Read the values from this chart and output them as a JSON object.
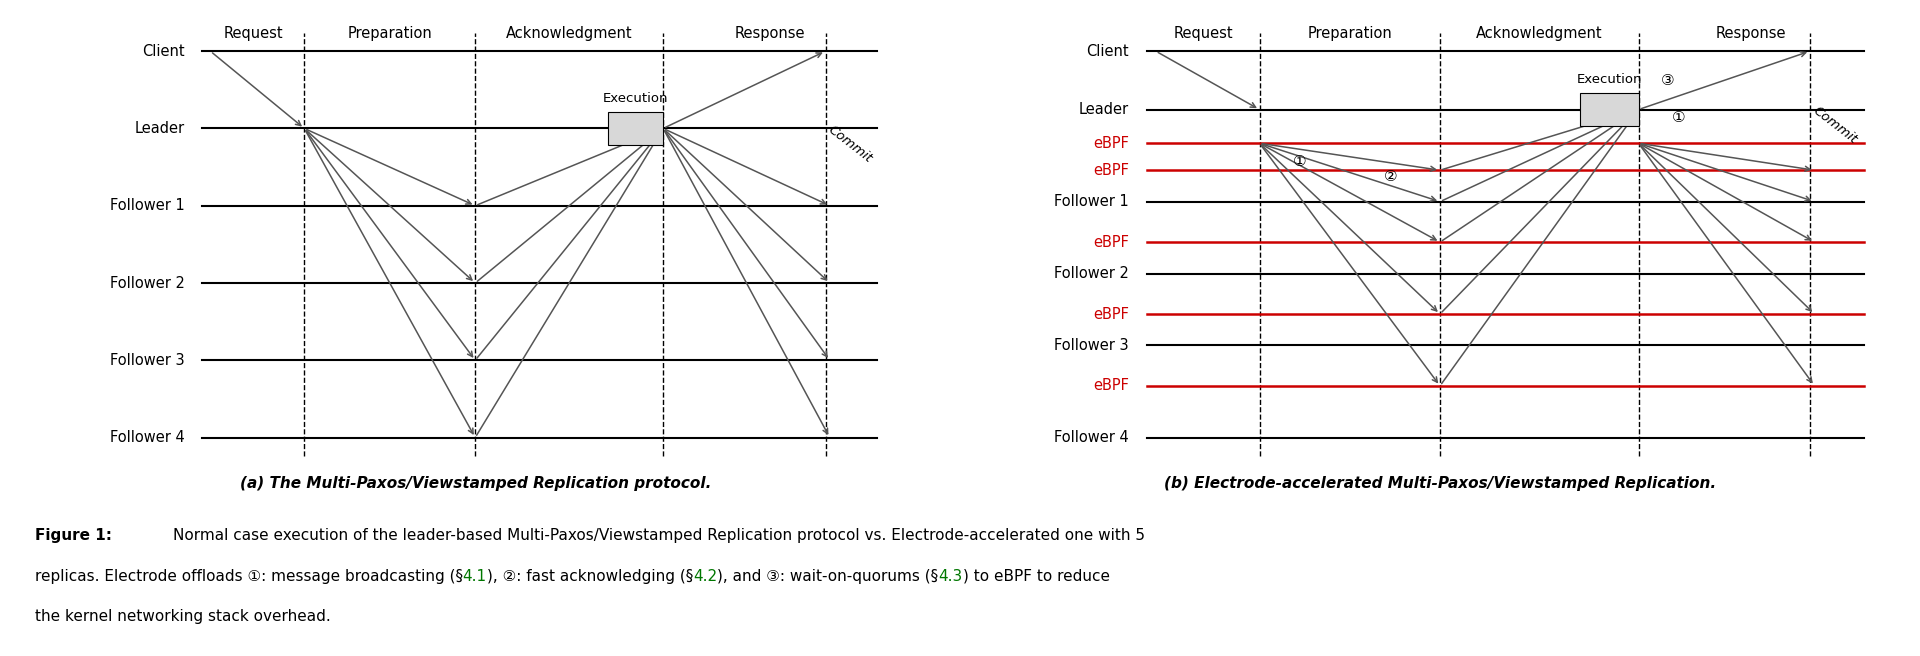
{
  "fig_width": 19.2,
  "fig_height": 6.56,
  "bg_color": "#ffffff",
  "arrow_color": "#555555",
  "ebpf_color": "#cc0000",
  "green_color": "#007700",
  "left_rows": [
    "Client",
    "Leader",
    "Follower 1",
    "Follower 2",
    "Follower 3",
    "Follower 4"
  ],
  "right_rows": [
    "Client",
    "Leader",
    "eBPF_1",
    "eBPF_2",
    "Follower 1",
    "eBPF_3",
    "Follower 2",
    "eBPF_4",
    "Follower 3",
    "eBPF_5",
    "Follower 4"
  ],
  "right_labels": [
    "Client",
    "Leader",
    "eBPF",
    "eBPF",
    "Follower 1",
    "eBPF",
    "Follower 2",
    "eBPF",
    "Follower 3",
    "eBPF",
    "Follower 4"
  ],
  "right_is_ebpf": [
    false,
    false,
    true,
    true,
    false,
    true,
    false,
    true,
    false,
    true,
    false
  ],
  "phase_labels": [
    "Request",
    "Preparation",
    "Acknowledgment",
    "Response"
  ],
  "caption_a": "(a) The Multi-Paxos/Viewstamped Replication protocol.",
  "caption_b": "(b) Electrode-accelerated Multi-Paxos/Viewstamped Replication."
}
